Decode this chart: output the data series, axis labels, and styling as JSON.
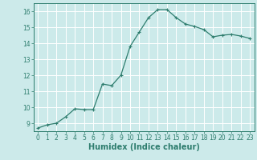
{
  "x": [
    0,
    1,
    2,
    3,
    4,
    5,
    6,
    7,
    8,
    9,
    10,
    11,
    12,
    13,
    14,
    15,
    16,
    17,
    18,
    19,
    20,
    21,
    22,
    23
  ],
  "y": [
    8.7,
    8.9,
    9.0,
    9.4,
    9.9,
    9.85,
    9.85,
    11.45,
    11.35,
    12.0,
    13.8,
    14.7,
    15.6,
    16.1,
    16.1,
    15.6,
    15.2,
    15.05,
    14.85,
    14.4,
    14.5,
    14.55,
    14.45,
    14.3
  ],
  "line_color": "#2e7d6e",
  "bg_color": "#cceaea",
  "grid_color": "#b8d8d8",
  "axis_color": "#2e7d6e",
  "tick_color": "#2e7d6e",
  "xlabel": "Humidex (Indice chaleur)",
  "xlim": [
    -0.5,
    23.5
  ],
  "ylim": [
    8.5,
    16.5
  ],
  "yticks": [
    9,
    10,
    11,
    12,
    13,
    14,
    15,
    16
  ],
  "xticks": [
    0,
    1,
    2,
    3,
    4,
    5,
    6,
    7,
    8,
    9,
    10,
    11,
    12,
    13,
    14,
    15,
    16,
    17,
    18,
    19,
    20,
    21,
    22,
    23
  ],
  "marker": "+",
  "markersize": 3,
  "linewidth": 0.9,
  "xlabel_fontsize": 7,
  "tick_fontsize": 5.5
}
